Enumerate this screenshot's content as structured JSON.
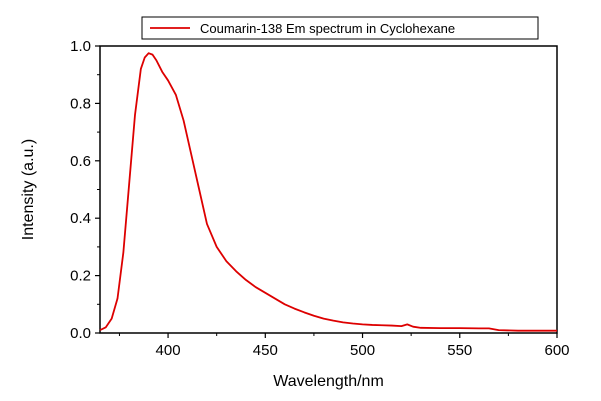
{
  "chart_data": {
    "type": "line",
    "xlabel": "Wavelength/nm",
    "ylabel": "Intensity (a.u.)",
    "xlim": [
      365,
      600
    ],
    "ylim": [
      0.0,
      1.0
    ],
    "x_ticks": [
      400,
      450,
      500,
      550,
      600
    ],
    "x_tick_labels": [
      "400",
      "450",
      "500",
      "550",
      "600"
    ],
    "y_ticks": [
      0.0,
      0.2,
      0.4,
      0.6,
      0.8,
      1.0
    ],
    "y_tick_labels": [
      "0.0",
      "0.2",
      "0.4",
      "0.6",
      "0.8",
      "1.0"
    ],
    "grid": false,
    "legend_position": "top-center",
    "series": [
      {
        "name": "Coumarin-138 Em spectrum in Cyclohexane",
        "color": "#dd0000",
        "x": [
          365,
          368,
          371,
          374,
          377,
          380,
          383,
          386,
          388,
          390,
          392,
          394,
          397,
          400,
          404,
          408,
          412,
          416,
          420,
          425,
          430,
          435,
          440,
          445,
          450,
          455,
          460,
          465,
          470,
          475,
          480,
          485,
          490,
          495,
          500,
          505,
          510,
          515,
          520,
          523,
          526,
          530,
          540,
          550,
          560,
          565,
          570,
          580,
          590,
          600
        ],
        "y": [
          0.01,
          0.02,
          0.05,
          0.12,
          0.28,
          0.52,
          0.76,
          0.92,
          0.96,
          0.975,
          0.97,
          0.95,
          0.91,
          0.88,
          0.83,
          0.74,
          0.62,
          0.5,
          0.38,
          0.3,
          0.25,
          0.215,
          0.185,
          0.16,
          0.14,
          0.12,
          0.1,
          0.085,
          0.072,
          0.06,
          0.05,
          0.043,
          0.037,
          0.033,
          0.03,
          0.028,
          0.027,
          0.026,
          0.024,
          0.03,
          0.022,
          0.018,
          0.017,
          0.017,
          0.016,
          0.016,
          0.01,
          0.008,
          0.008,
          0.008
        ]
      }
    ]
  }
}
